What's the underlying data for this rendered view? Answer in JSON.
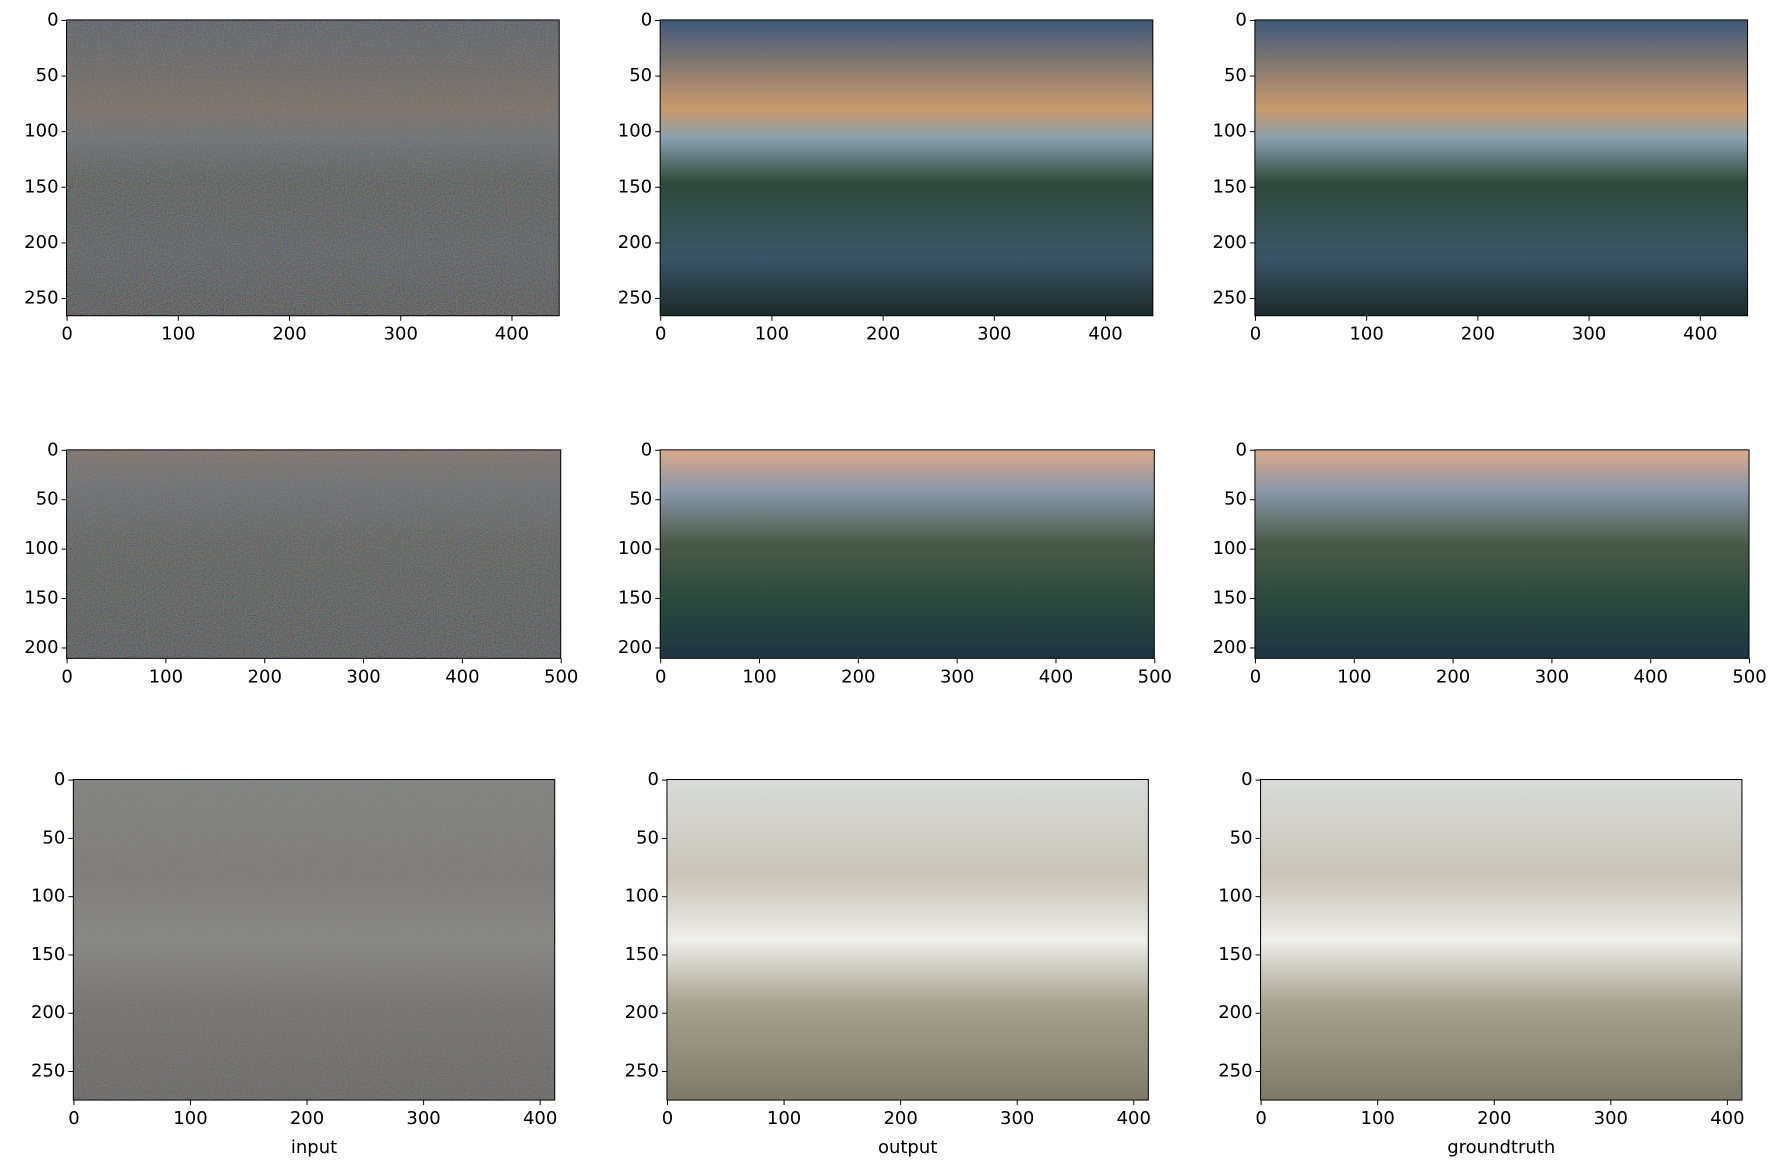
{
  "chart_data": [
    {
      "type": "image",
      "xlim": [
        -0.5,
        442.5
      ],
      "ylim": [
        265.5,
        -0.5
      ],
      "xticks": [
        0,
        100,
        200,
        300,
        400
      ],
      "yticks": [
        0,
        50,
        100,
        150,
        200,
        250
      ]
    },
    {
      "type": "image",
      "xlim": [
        -0.5,
        442.5
      ],
      "ylim": [
        265.5,
        -0.5
      ],
      "xticks": [
        0,
        100,
        200,
        300,
        400
      ],
      "yticks": [
        0,
        50,
        100,
        150,
        200,
        250
      ]
    },
    {
      "type": "image",
      "xlim": [
        -0.5,
        442.5
      ],
      "ylim": [
        265.5,
        -0.5
      ],
      "xticks": [
        0,
        100,
        200,
        300,
        400
      ],
      "yticks": [
        0,
        50,
        100,
        150,
        200,
        250
      ]
    },
    {
      "type": "image",
      "xlim": [
        -0.5,
        499.5
      ],
      "ylim": [
        210.5,
        -0.5
      ],
      "xticks": [
        0,
        100,
        200,
        300,
        400,
        500
      ],
      "yticks": [
        0,
        50,
        100,
        150,
        200
      ]
    },
    {
      "type": "image",
      "xlim": [
        -0.5,
        499.5
      ],
      "ylim": [
        210.5,
        -0.5
      ],
      "xticks": [
        0,
        100,
        200,
        300,
        400,
        500
      ],
      "yticks": [
        0,
        50,
        100,
        150,
        200
      ]
    },
    {
      "type": "image",
      "xlim": [
        -0.5,
        499.5
      ],
      "ylim": [
        210.5,
        -0.5
      ],
      "xticks": [
        0,
        100,
        200,
        300,
        400,
        500
      ],
      "yticks": [
        0,
        50,
        100,
        150,
        200
      ]
    },
    {
      "type": "image",
      "xlim": [
        -0.5,
        412.5
      ],
      "ylim": [
        274.5,
        -0.5
      ],
      "xticks": [
        0,
        100,
        200,
        300,
        400
      ],
      "yticks": [
        0,
        50,
        100,
        150,
        200,
        250
      ],
      "xlabel": "input"
    },
    {
      "type": "image",
      "xlim": [
        -0.5,
        412.5
      ],
      "ylim": [
        274.5,
        -0.5
      ],
      "xticks": [
        0,
        100,
        200,
        300,
        400
      ],
      "yticks": [
        0,
        50,
        100,
        150,
        200,
        250
      ],
      "xlabel": "output"
    },
    {
      "type": "image",
      "xlim": [
        -0.5,
        412.5
      ],
      "ylim": [
        274.5,
        -0.5
      ],
      "xticks": [
        0,
        100,
        200,
        300,
        400
      ],
      "yticks": [
        0,
        50,
        100,
        150,
        200,
        250
      ],
      "xlabel": "groundtruth"
    }
  ]
}
